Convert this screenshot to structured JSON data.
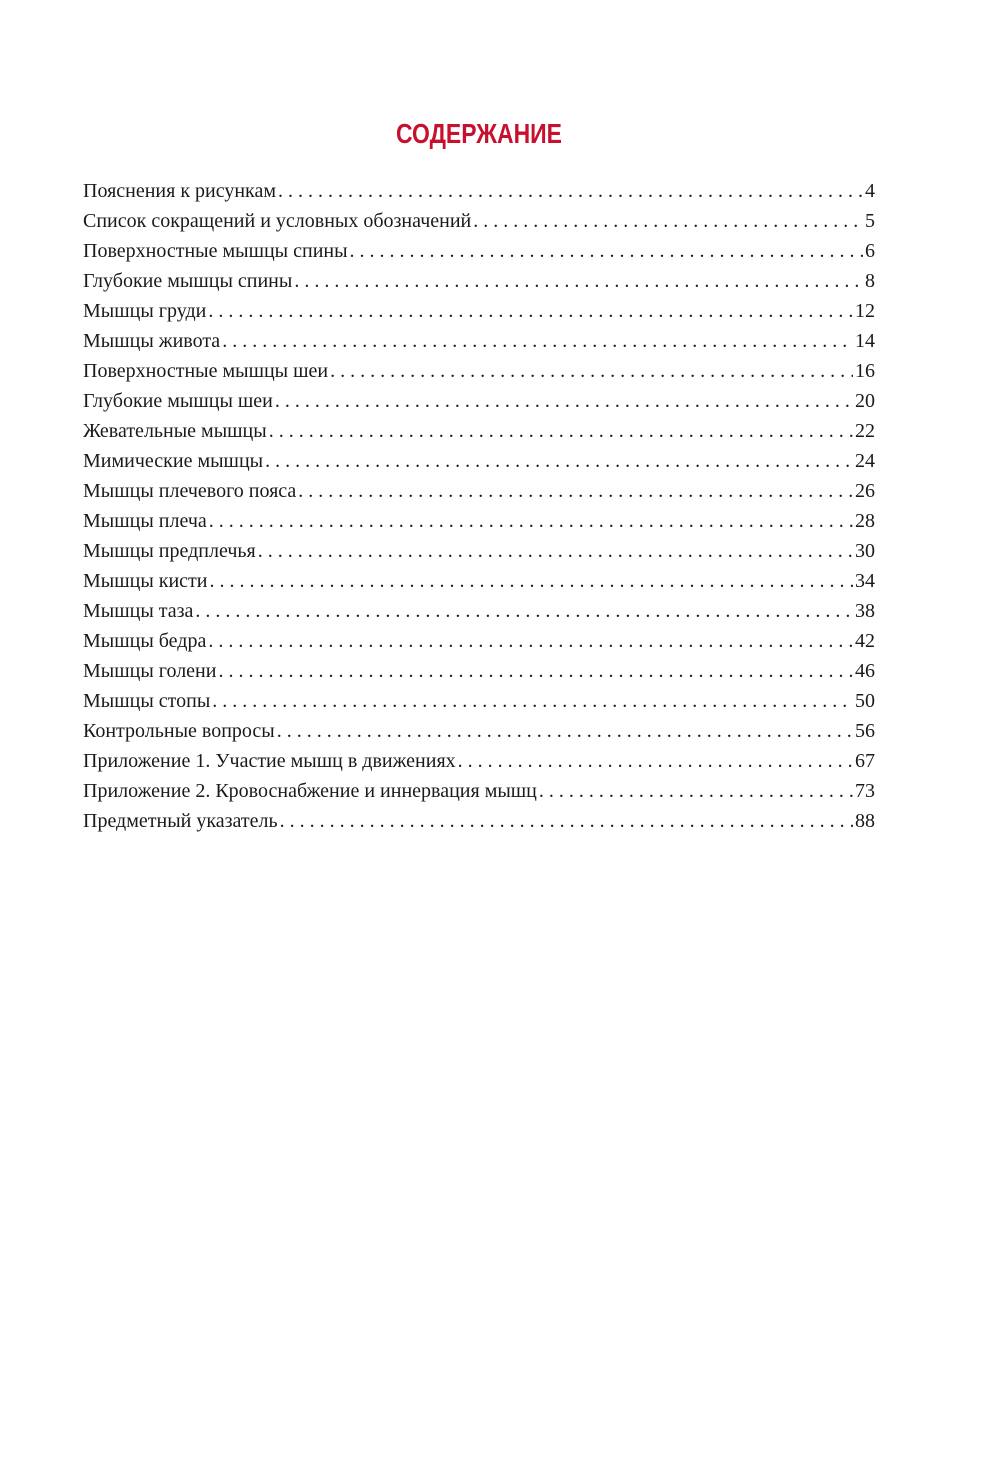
{
  "title": "СОДЕРЖАНИЕ",
  "title_color": "#c8102e",
  "entries": [
    {
      "label": "Пояснения к рисункам",
      "page": "4"
    },
    {
      "label": "Список сокращений и условных обозначений",
      "page": "5"
    },
    {
      "label": "Поверхностные мышцы спины",
      "page": "6"
    },
    {
      "label": "Глубокие мышцы спины",
      "page": "8"
    },
    {
      "label": "Мышцы груди",
      "page": "12"
    },
    {
      "label": "Мышцы живота",
      "page": "14"
    },
    {
      "label": "Поверхностные мышцы шеи",
      "page": "16"
    },
    {
      "label": "Глубокие мышцы шеи",
      "page": "20"
    },
    {
      "label": "Жевательные мышцы",
      "page": "22"
    },
    {
      "label": "Мимические мышцы",
      "page": "24"
    },
    {
      "label": "Мышцы плечевого пояса",
      "page": "26"
    },
    {
      "label": "Мышцы плеча",
      "page": "28"
    },
    {
      "label": "Мышцы предплечья",
      "page": "30"
    },
    {
      "label": "Мышцы кисти",
      "page": "34"
    },
    {
      "label": "Мышцы таза",
      "page": "38"
    },
    {
      "label": "Мышцы бедра",
      "page": "42"
    },
    {
      "label": "Мышцы голени",
      "page": "46"
    },
    {
      "label": "Мышцы стопы",
      "page": "50"
    },
    {
      "label": "Контрольные вопросы",
      "page": "56"
    },
    {
      "label": "Приложение 1. Участие мышц в движениях",
      "page": "67"
    },
    {
      "label": "Приложение 2. Кровоснабжение и иннервация мышц",
      "page": "73"
    },
    {
      "label": "Предметный указатель",
      "page": "88"
    }
  ]
}
